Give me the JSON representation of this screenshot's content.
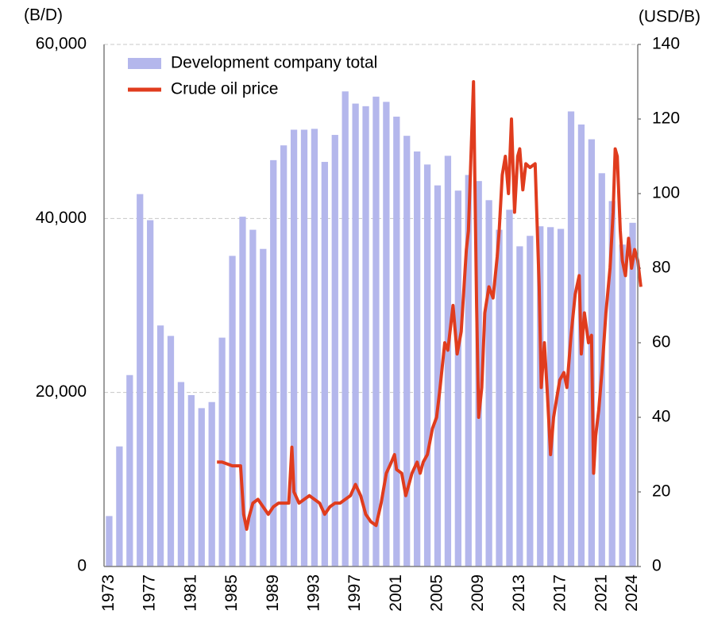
{
  "chart_data": {
    "type": "bar_line",
    "y_label": "(B/D)",
    "y2_label": "(USD/B)",
    "categories": [
      "1973",
      null,
      null,
      null,
      "1977",
      null,
      null,
      null,
      "1981",
      null,
      null,
      null,
      "1985",
      null,
      null,
      null,
      "1989",
      null,
      null,
      null,
      "1993",
      null,
      null,
      null,
      "1997",
      null,
      null,
      null,
      "2001",
      null,
      null,
      null,
      "2005",
      null,
      null,
      null,
      "2009",
      null,
      null,
      null,
      "2013",
      null,
      null,
      null,
      "2017",
      null,
      null,
      null,
      "2021",
      null,
      null,
      "2024"
    ],
    "xlim": [
      1972.5,
      2024.5
    ],
    "ylim": [
      0,
      60000
    ],
    "yticks": [
      0,
      {
        "value": 20000,
        "label": "20,000"
      },
      {
        "value": 40000,
        "label": "40,000"
      },
      {
        "value": 60000,
        "label": "60,000"
      }
    ],
    "y2lim": [
      0,
      140
    ],
    "y2ticks": [
      0,
      20,
      40,
      60,
      80,
      100,
      120,
      140
    ],
    "grid": true,
    "legend": "upper left",
    "series": [
      {
        "name": "Development company total",
        "type": "bar",
        "color": "#b4b7ec",
        "values": [
          5800,
          13800,
          22000,
          42800,
          39800,
          27700,
          26500,
          21200,
          19700,
          18200,
          18900,
          26300,
          35700,
          40200,
          38700,
          36500,
          46700,
          48400,
          50200,
          50200,
          50300,
          46500,
          49600,
          54600,
          53200,
          52900,
          54000,
          53400,
          51700,
          49500,
          47700,
          46200,
          43800,
          47200,
          43200,
          45000,
          44300,
          42100,
          38700,
          41000,
          36800,
          38000,
          39100,
          39000,
          38800,
          52300,
          50800,
          49100,
          45200,
          42000,
          37000,
          39500
        ]
      },
      {
        "name": "Crude oil price",
        "type": "line",
        "color": "#e03c1e",
        "axis": "y2",
        "x": [
          1983.5,
          1984,
          1984.5,
          1985,
          1985.5,
          1985.8,
          1986.1,
          1986.4,
          1986.6,
          1987,
          1987.5,
          1988,
          1988.5,
          1989,
          1989.5,
          1990,
          1990.5,
          1990.8,
          1991,
          1991.5,
          1992,
          1992.5,
          1993,
          1993.5,
          1994,
          1994.5,
          1995,
          1995.5,
          1996,
          1996.5,
          1997,
          1997.5,
          1998,
          1998.5,
          1999,
          1999.5,
          2000,
          2000.5,
          2000.8,
          2001,
          2001.5,
          2001.9,
          2002.2,
          2002.5,
          2003,
          2003.3,
          2003.6,
          2004,
          2004.5,
          2004.9,
          2005.2,
          2005.7,
          2006,
          2006.5,
          2006.9,
          2007.3,
          2007.8,
          2008,
          2008.5,
          2008.8,
          2009,
          2009.3,
          2009.6,
          2010,
          2010.4,
          2010.8,
          2011,
          2011.3,
          2011.6,
          2011.9,
          2012.2,
          2012.5,
          2012.8,
          2013,
          2013.3,
          2013.6,
          2014,
          2014.5,
          2014.9,
          2015.1,
          2015.4,
          2015.7,
          2016,
          2016.3,
          2016.6,
          2016.9,
          2017.3,
          2017.6,
          2018,
          2018.4,
          2018.8,
          2019,
          2019.3,
          2019.7,
          2020,
          2020.2,
          2020.4,
          2020.7,
          2021,
          2021.4,
          2021.8,
          2022.1,
          2022.3,
          2022.5,
          2022.8,
          2023,
          2023.3,
          2023.6,
          2023.9,
          2024.2,
          2024.5,
          2024.8
        ],
        "values": [
          28,
          28,
          27.5,
          27,
          27,
          27,
          14,
          10,
          13,
          17,
          18,
          16,
          14,
          16,
          17,
          17,
          17,
          32,
          20,
          17,
          18,
          19,
          18,
          17,
          14,
          16,
          17,
          17,
          18,
          19,
          22,
          19,
          14,
          12,
          11,
          17,
          25,
          28,
          30,
          26,
          25,
          19,
          22,
          25,
          28,
          25,
          28,
          30,
          37,
          40,
          47,
          60,
          58,
          70,
          57,
          63,
          85,
          90,
          130,
          70,
          40,
          48,
          68,
          75,
          72,
          83,
          90,
          105,
          110,
          100,
          120,
          95,
          110,
          112,
          101,
          108,
          107,
          108,
          75,
          48,
          60,
          46,
          30,
          40,
          45,
          50,
          52,
          48,
          62,
          73,
          78,
          57,
          68,
          60,
          62,
          25,
          35,
          42,
          52,
          68,
          80,
          95,
          112,
          110,
          90,
          82,
          78,
          88,
          80,
          85,
          82,
          75
        ]
      }
    ]
  }
}
